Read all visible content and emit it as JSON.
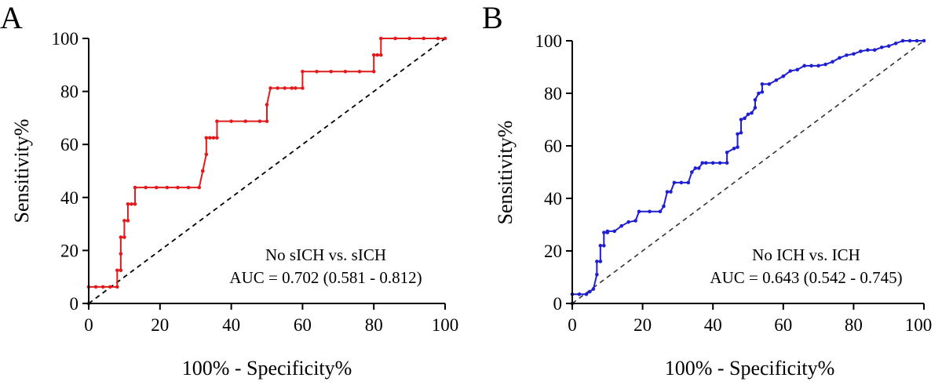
{
  "chart_data": [
    {
      "type": "line",
      "panel_label": "A",
      "xlabel": "100% - Specificity%",
      "ylabel": "Sensitivity%",
      "xlim": [
        0,
        100
      ],
      "ylim": [
        0,
        100
      ],
      "xticks": [
        0,
        20,
        40,
        60,
        80,
        100
      ],
      "yticks": [
        0,
        20,
        40,
        60,
        80,
        100
      ],
      "annotation": [
        "No sICH vs. sICH",
        "AUC = 0.702 (0.581 - 0.812)"
      ],
      "series": [
        {
          "name": "No sICH vs. sICH",
          "color": "#e31a1c",
          "x": [
            0,
            0,
            2,
            4,
            6,
            8,
            8,
            9,
            9,
            9,
            10,
            10,
            11,
            11,
            12,
            13,
            13,
            16,
            19,
            22,
            25,
            28,
            31,
            32,
            32,
            33,
            33,
            34,
            35,
            36,
            36,
            40,
            44,
            48,
            50,
            50,
            51,
            53,
            55,
            57,
            58,
            60,
            60,
            64,
            68,
            72,
            76,
            80,
            80,
            81,
            82,
            82,
            86,
            90,
            94,
            98,
            100
          ],
          "y": [
            0,
            6.25,
            6.25,
            6.25,
            6.25,
            6.25,
            12.5,
            12.5,
            18.75,
            25,
            25,
            31.25,
            31.25,
            37.5,
            37.5,
            37.5,
            43.75,
            43.75,
            43.75,
            43.75,
            43.75,
            43.75,
            43.75,
            50,
            50,
            56.25,
            62.5,
            62.5,
            62.5,
            62.5,
            68.75,
            68.75,
            68.75,
            68.75,
            68.75,
            75,
            81.25,
            81.25,
            81.25,
            81.25,
            81.25,
            81.25,
            87.5,
            87.5,
            87.5,
            87.5,
            87.5,
            87.5,
            93.75,
            93.75,
            93.75,
            100,
            100,
            100,
            100,
            100,
            100
          ]
        }
      ]
    },
    {
      "type": "line",
      "panel_label": "B",
      "xlabel": "100% - Specificity%",
      "ylabel": "Sensitivity%",
      "xlim": [
        0,
        100
      ],
      "ylim": [
        0,
        100
      ],
      "xticks": [
        0,
        20,
        40,
        60,
        80,
        100
      ],
      "yticks": [
        0,
        20,
        40,
        60,
        80,
        100
      ],
      "annotation": [
        "No ICH vs. ICH",
        "AUC = 0.643 (0.542 - 0.745)"
      ],
      "series": [
        {
          "name": "No ICH vs. ICH",
          "color": "#1f1fd1",
          "x": [
            0,
            0,
            2,
            4,
            5,
            6,
            7,
            7,
            8,
            8,
            9,
            9,
            10,
            10,
            12,
            14,
            16,
            18,
            19,
            22,
            25,
            26,
            27,
            28,
            29,
            31,
            33,
            34,
            35,
            36,
            37,
            38,
            40,
            42,
            44,
            44,
            46,
            47,
            47,
            48,
            48,
            49,
            50,
            51,
            52,
            52,
            53,
            54,
            54,
            56,
            58,
            60,
            62,
            64,
            66,
            68,
            70,
            72,
            74,
            76,
            78,
            80,
            82,
            84,
            86,
            88,
            90,
            92,
            94,
            96,
            98,
            100
          ],
          "y": [
            0,
            3.5,
            3.5,
            3.5,
            4.5,
            5.5,
            11,
            16,
            16,
            22,
            22,
            27,
            27,
            27.5,
            27.5,
            29.5,
            31,
            31.5,
            35,
            35,
            35,
            37,
            42.5,
            42.5,
            46,
            46,
            46,
            50,
            51.5,
            51.5,
            53.5,
            53.5,
            53.5,
            53.5,
            53.5,
            57.5,
            59,
            59.5,
            64.5,
            65,
            70,
            70.5,
            72,
            72.5,
            74.5,
            77.5,
            80,
            80.5,
            83.5,
            83.5,
            85,
            86.5,
            88.5,
            89,
            90.5,
            90.5,
            90.5,
            91,
            92,
            93.5,
            94.5,
            95,
            96,
            96.5,
            96.5,
            97.5,
            98,
            99,
            100,
            100,
            100,
            100
          ]
        }
      ]
    }
  ]
}
